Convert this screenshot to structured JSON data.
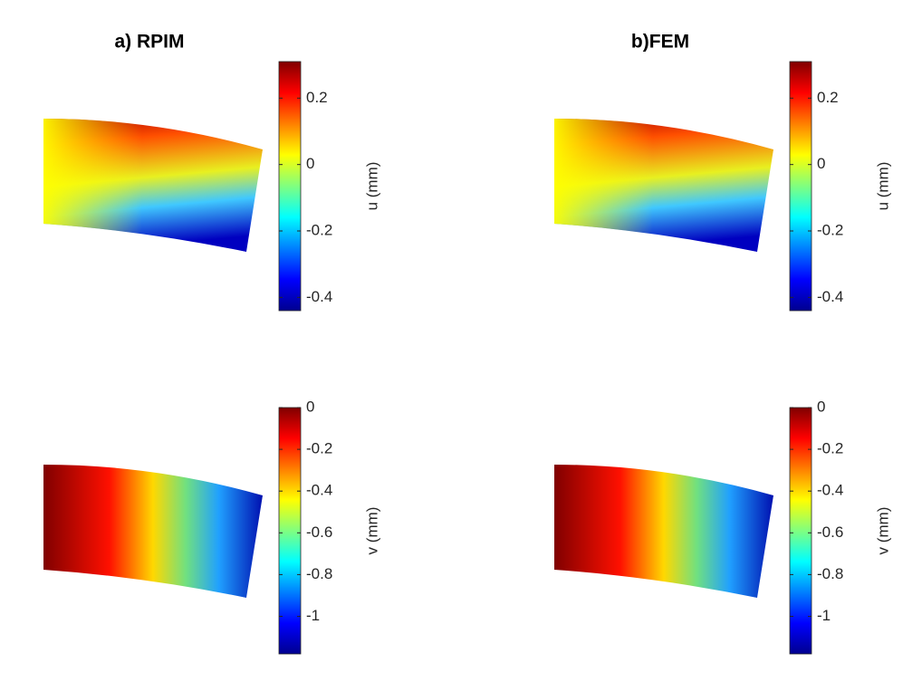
{
  "chart_data": [
    {
      "type": "contour",
      "title": "a) RPIM",
      "colorbar_label": "u (mm)",
      "colormap": "jet",
      "zlim": [
        -0.44,
        0.31
      ],
      "zticks": [
        -0.4,
        -0.2,
        0,
        0.2
      ]
    },
    {
      "type": "contour",
      "title": "b)FEM",
      "colorbar_label": "u (mm)",
      "colormap": "jet",
      "zlim": [
        -0.44,
        0.31
      ],
      "zticks": [
        -0.4,
        -0.2,
        0,
        0.2
      ]
    },
    {
      "type": "contour",
      "colorbar_label": "v (mm)",
      "colormap": "jet",
      "zlim": [
        -1.18,
        0
      ],
      "zticks": [
        -1,
        -0.8,
        -0.6,
        -0.4,
        -0.2,
        0
      ]
    },
    {
      "type": "contour",
      "colorbar_label": "v (mm)",
      "colormap": "jet",
      "zlim": [
        -1.18,
        0
      ],
      "zticks": [
        -1,
        -0.8,
        -0.6,
        -0.4,
        -0.2,
        0
      ]
    }
  ]
}
